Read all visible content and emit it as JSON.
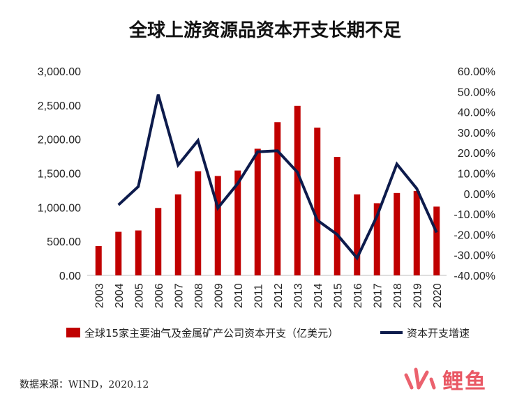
{
  "chart_data": {
    "type": "bar",
    "title": "全球上游资源品资本开支长期不足",
    "categories": [
      "2003",
      "2004",
      "2005",
      "2006",
      "2007",
      "2008",
      "2009",
      "2010",
      "2011",
      "2012",
      "2013",
      "2014",
      "2015",
      "2016",
      "2017",
      "2018",
      "2019",
      "2020"
    ],
    "series": [
      {
        "name": "全球15家主要油气及金属矿产公司资本开支（亿美元）",
        "type": "bar",
        "axis": "left",
        "color": "#c00000",
        "values": [
          430,
          640,
          660,
          990,
          1190,
          1530,
          1460,
          1540,
          1860,
          2250,
          2490,
          2170,
          1740,
          1190,
          1060,
          1210,
          1240,
          1010
        ]
      },
      {
        "name": "资本开支增速",
        "type": "line",
        "axis": "right",
        "color": "#0d1b4c",
        "values": [
          null,
          -5.5,
          3.5,
          48.5,
          14.0,
          26.0,
          -7.0,
          5.0,
          20.5,
          21.0,
          10.5,
          -13.0,
          -20.0,
          -31.5,
          -11.0,
          14.5,
          2.5,
          -19.0
        ]
      }
    ],
    "left_axis": {
      "ylim": [
        0,
        3000
      ],
      "ticks": [
        "3,000.00",
        "2,500.00",
        "2,000.00",
        "1,500.00",
        "1,000.00",
        "500.00",
        "0.00"
      ],
      "tick_values": [
        3000,
        2500,
        2000,
        1500,
        1000,
        500,
        0
      ]
    },
    "right_axis": {
      "ylim": [
        -40,
        60
      ],
      "ticks": [
        "60.00%",
        "50.00%",
        "40.00%",
        "30.00%",
        "20.00%",
        "10.00%",
        "0.00%",
        "-10.00%",
        "-20.00%",
        "-30.00%",
        "-40.00%"
      ],
      "tick_values": [
        60,
        50,
        40,
        30,
        20,
        10,
        0,
        -10,
        -20,
        -30,
        -40
      ]
    },
    "grid": false,
    "legend_position": "bottom"
  },
  "source": "数据来源：WIND，2020.12",
  "watermark": "鲤鱼"
}
